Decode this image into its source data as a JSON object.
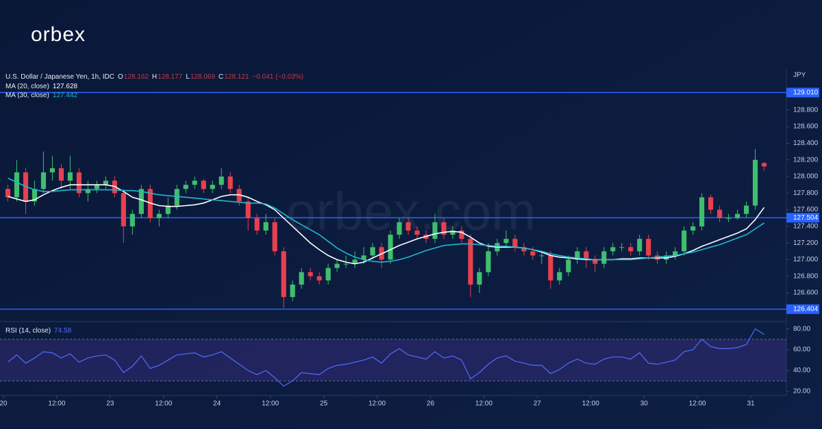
{
  "logo": "orbex",
  "watermark": "orbex.com",
  "chart_data": {
    "type": "candlestick",
    "header": {
      "symbol": "U.S. Dollar / Japanese Yen, 1h, IDC",
      "quote": [
        "O",
        "128.162",
        "H",
        "128.177",
        "L",
        "128.069",
        "C",
        "128.121",
        "−0.041 (−0.03%)"
      ]
    },
    "axis_unit": "JPY",
    "up_color": "#3fbf6e",
    "down_color": "#e8404f",
    "xlim": [
      -0.885,
      87.5
    ],
    "xticks": [
      {
        "value": -0.5,
        "label": "20"
      },
      {
        "value": 5.5,
        "label": "12:00"
      },
      {
        "value": 11.5,
        "label": "23"
      },
      {
        "value": 17.5,
        "label": "12:00"
      },
      {
        "value": 23.5,
        "label": "24"
      },
      {
        "value": 29.5,
        "label": "12:00"
      },
      {
        "value": 35.5,
        "label": "25"
      },
      {
        "value": 41.5,
        "label": "12:00"
      },
      {
        "value": 47.5,
        "label": "26"
      },
      {
        "value": 53.5,
        "label": "12:00"
      },
      {
        "value": 59.5,
        "label": "27"
      },
      {
        "value": 65.5,
        "label": "12:00"
      },
      {
        "value": 71.5,
        "label": "30"
      },
      {
        "value": 77.5,
        "label": "12:00"
      },
      {
        "value": 83.5,
        "label": "31"
      }
    ],
    "ylim": [
      126.255,
      129.3
    ],
    "yticks": [
      {
        "value": 128.8,
        "label": "128.800"
      },
      {
        "value": 128.6,
        "label": "128.600"
      },
      {
        "value": 128.4,
        "label": "128.400"
      },
      {
        "value": 128.2,
        "label": "128.200"
      },
      {
        "value": 128.0,
        "label": "128.000"
      },
      {
        "value": 127.8,
        "label": "127.800"
      },
      {
        "value": 127.6,
        "label": "127.600"
      },
      {
        "value": 127.4,
        "label": "127.400"
      },
      {
        "value": 127.2,
        "label": "127.200"
      },
      {
        "value": 127.0,
        "label": "127.000"
      },
      {
        "value": 126.8,
        "label": "126.800"
      },
      {
        "value": 126.6,
        "label": "126.600"
      }
    ],
    "levels": [
      {
        "value": 129.01,
        "label": "129.010"
      },
      {
        "value": 127.504,
        "label": "127.504"
      },
      {
        "value": 126.404,
        "label": "126.404"
      }
    ],
    "level_color": "#2962ff",
    "ohlc": [
      [
        127.85,
        127.9,
        127.7,
        127.75
      ],
      [
        127.75,
        128.2,
        127.7,
        128.05
      ],
      [
        128.05,
        128.1,
        127.55,
        127.7
      ],
      [
        127.7,
        127.95,
        127.65,
        127.85
      ],
      [
        127.85,
        128.3,
        127.8,
        128.05
      ],
      [
        128.05,
        128.25,
        127.95,
        128.1
      ],
      [
        128.1,
        128.15,
        127.85,
        127.95
      ],
      [
        127.95,
        128.25,
        127.85,
        128.05
      ],
      [
        128.05,
        128.1,
        127.75,
        127.8
      ],
      [
        127.8,
        127.95,
        127.7,
        127.85
      ],
      [
        127.85,
        127.95,
        127.8,
        127.9
      ],
      [
        127.9,
        128.0,
        127.85,
        127.95
      ],
      [
        127.95,
        128.0,
        127.75,
        127.8
      ],
      [
        127.8,
        127.85,
        127.2,
        127.4
      ],
      [
        127.4,
        127.6,
        127.3,
        127.55
      ],
      [
        127.55,
        127.9,
        127.5,
        127.85
      ],
      [
        127.85,
        127.9,
        127.45,
        127.5
      ],
      [
        127.5,
        127.6,
        127.4,
        127.55
      ],
      [
        127.55,
        127.75,
        127.5,
        127.65
      ],
      [
        127.65,
        127.9,
        127.6,
        127.85
      ],
      [
        127.85,
        127.95,
        127.8,
        127.9
      ],
      [
        127.9,
        128.0,
        127.85,
        127.95
      ],
      [
        127.95,
        127.97,
        127.8,
        127.85
      ],
      [
        127.85,
        127.95,
        127.8,
        127.9
      ],
      [
        127.9,
        128.1,
        127.85,
        128.0
      ],
      [
        128.0,
        128.05,
        127.8,
        127.85
      ],
      [
        127.85,
        127.9,
        127.65,
        127.7
      ],
      [
        127.7,
        127.75,
        127.35,
        127.5
      ],
      [
        127.5,
        127.55,
        127.3,
        127.35
      ],
      [
        127.35,
        127.55,
        127.3,
        127.45
      ],
      [
        127.45,
        127.5,
        127.05,
        127.1
      ],
      [
        127.1,
        127.15,
        126.42,
        126.55
      ],
      [
        126.55,
        126.75,
        126.5,
        126.7
      ],
      [
        126.7,
        126.9,
        126.65,
        126.85
      ],
      [
        126.85,
        126.9,
        126.75,
        126.8
      ],
      [
        126.8,
        126.85,
        126.7,
        126.75
      ],
      [
        126.75,
        126.95,
        126.7,
        126.9
      ],
      [
        126.9,
        127.0,
        126.85,
        126.95
      ],
      [
        126.95,
        127.05,
        126.9,
        126.95
      ],
      [
        126.95,
        127.1,
        126.9,
        127.0
      ],
      [
        127.0,
        127.15,
        126.95,
        127.05
      ],
      [
        127.05,
        127.2,
        127.0,
        127.15
      ],
      [
        127.15,
        127.2,
        126.9,
        127.0
      ],
      [
        127.0,
        127.35,
        126.95,
        127.3
      ],
      [
        127.3,
        127.5,
        127.25,
        127.45
      ],
      [
        127.45,
        127.5,
        127.3,
        127.35
      ],
      [
        127.35,
        127.4,
        127.25,
        127.3
      ],
      [
        127.3,
        127.35,
        127.2,
        127.25
      ],
      [
        127.25,
        127.55,
        127.2,
        127.45
      ],
      [
        127.45,
        127.5,
        127.25,
        127.3
      ],
      [
        127.3,
        127.4,
        127.25,
        127.35
      ],
      [
        127.35,
        127.4,
        127.2,
        127.25
      ],
      [
        127.25,
        127.3,
        126.55,
        126.7
      ],
      [
        126.7,
        126.9,
        126.6,
        126.85
      ],
      [
        126.85,
        127.2,
        126.8,
        127.1
      ],
      [
        127.1,
        127.25,
        127.05,
        127.2
      ],
      [
        127.2,
        127.35,
        127.15,
        127.25
      ],
      [
        127.25,
        127.3,
        127.1,
        127.15
      ],
      [
        127.15,
        127.2,
        127.05,
        127.1
      ],
      [
        127.1,
        127.15,
        127.0,
        127.05
      ],
      [
        127.05,
        127.1,
        126.95,
        127.05
      ],
      [
        127.05,
        127.1,
        126.65,
        126.75
      ],
      [
        126.75,
        126.9,
        126.7,
        126.85
      ],
      [
        126.85,
        127.05,
        126.8,
        127.0
      ],
      [
        127.0,
        127.15,
        126.95,
        127.1
      ],
      [
        127.1,
        127.15,
        126.9,
        127.0
      ],
      [
        127.0,
        127.05,
        126.85,
        126.95
      ],
      [
        126.95,
        127.15,
        126.9,
        127.1
      ],
      [
        127.1,
        127.2,
        127.05,
        127.15
      ],
      [
        127.15,
        127.2,
        127.1,
        127.15
      ],
      [
        127.15,
        127.2,
        127.05,
        127.1
      ],
      [
        127.1,
        127.3,
        127.05,
        127.25
      ],
      [
        127.25,
        127.3,
        127.0,
        127.05
      ],
      [
        127.05,
        127.1,
        126.95,
        127.0
      ],
      [
        127.0,
        127.1,
        126.95,
        127.05
      ],
      [
        127.05,
        127.15,
        127.0,
        127.1
      ],
      [
        127.1,
        127.4,
        127.05,
        127.35
      ],
      [
        127.35,
        127.45,
        127.3,
        127.4
      ],
      [
        127.4,
        127.8,
        127.35,
        127.75
      ],
      [
        127.75,
        127.78,
        127.55,
        127.6
      ],
      [
        127.6,
        127.65,
        127.45,
        127.5
      ],
      [
        127.5,
        127.55,
        127.45,
        127.5
      ],
      [
        127.5,
        127.6,
        127.48,
        127.55
      ],
      [
        127.55,
        127.7,
        127.5,
        127.65
      ],
      [
        127.65,
        128.33,
        127.6,
        128.2
      ],
      [
        128.162,
        128.177,
        128.069,
        128.121
      ]
    ],
    "series": [
      {
        "name": "MA (20, close)",
        "color": "#ffffff",
        "last_label": "127.628",
        "values": [
          127.76,
          127.73,
          127.7,
          127.72,
          127.78,
          127.83,
          127.87,
          127.9,
          127.9,
          127.9,
          127.9,
          127.9,
          127.88,
          127.82,
          127.75,
          127.72,
          127.68,
          127.65,
          127.64,
          127.64,
          127.65,
          127.66,
          127.68,
          127.72,
          127.76,
          127.78,
          127.78,
          127.75,
          127.7,
          127.66,
          127.6,
          127.5,
          127.4,
          127.3,
          127.2,
          127.12,
          127.05,
          127.0,
          126.97,
          126.95,
          126.97,
          127.02,
          127.07,
          127.12,
          127.17,
          127.21,
          127.25,
          127.28,
          127.31,
          127.33,
          127.34,
          127.33,
          127.27,
          127.2,
          127.16,
          127.15,
          127.15,
          127.15,
          127.14,
          127.12,
          127.09,
          127.05,
          127.03,
          127.02,
          127.01,
          127.0,
          127.0,
          127.0,
          127.0,
          127.01,
          127.01,
          127.02,
          127.02,
          127.02,
          127.02,
          127.04,
          127.07,
          127.11,
          127.16,
          127.2,
          127.24,
          127.28,
          127.32,
          127.37,
          127.48,
          127.628
        ]
      },
      {
        "name": "MA (30, close)",
        "color": "#22b8cf",
        "last_label": "127.442",
        "values": [
          127.98,
          127.93,
          127.88,
          127.84,
          127.82,
          127.82,
          127.83,
          127.84,
          127.84,
          127.84,
          127.84,
          127.84,
          127.84,
          127.83,
          127.83,
          127.82,
          127.8,
          127.78,
          127.77,
          127.76,
          127.75,
          127.74,
          127.73,
          127.72,
          127.71,
          127.7,
          127.69,
          127.68,
          127.68,
          127.67,
          127.62,
          127.55,
          127.48,
          127.42,
          127.36,
          127.3,
          127.22,
          127.14,
          127.08,
          127.03,
          127.0,
          126.98,
          126.97,
          126.98,
          127.0,
          127.03,
          127.07,
          127.11,
          127.14,
          127.17,
          127.18,
          127.19,
          127.19,
          127.18,
          127.17,
          127.16,
          127.16,
          127.15,
          127.14,
          127.12,
          127.1,
          127.07,
          127.05,
          127.03,
          127.02,
          127.01,
          127.0,
          127.0,
          127.0,
          127.0,
          127.0,
          127.01,
          127.02,
          127.03,
          127.04,
          127.05,
          127.07,
          127.09,
          127.12,
          127.15,
          127.18,
          127.22,
          127.26,
          127.3,
          127.37,
          127.442
        ]
      }
    ],
    "rsi": {
      "name": "RSI (14, close)",
      "color": "#4f6dff",
      "last_label": "74.58",
      "ylim": [
        16,
        87
      ],
      "band": [
        30,
        70
      ],
      "yticks": [
        {
          "value": 80,
          "label": "80.00"
        },
        {
          "value": 60,
          "label": "60.00"
        },
        {
          "value": 40,
          "label": "40.00"
        },
        {
          "value": 20,
          "label": "20.00"
        }
      ],
      "values": [
        48,
        55,
        47,
        52,
        58,
        57,
        52,
        56,
        48,
        52,
        54,
        55,
        50,
        38,
        44,
        54,
        42,
        45,
        50,
        55,
        56,
        57,
        53,
        55,
        58,
        52,
        46,
        40,
        36,
        40,
        33,
        25,
        30,
        38,
        37,
        36,
        42,
        45,
        46,
        48,
        50,
        53,
        47,
        56,
        61,
        55,
        53,
        51,
        58,
        52,
        54,
        50,
        32,
        38,
        46,
        52,
        54,
        49,
        47,
        45,
        45,
        37,
        41,
        47,
        51,
        47,
        46,
        51,
        53,
        53,
        51,
        57,
        47,
        46,
        48,
        50,
        58,
        60,
        70,
        63,
        61,
        61,
        62,
        65,
        80,
        74.58
      ]
    }
  }
}
